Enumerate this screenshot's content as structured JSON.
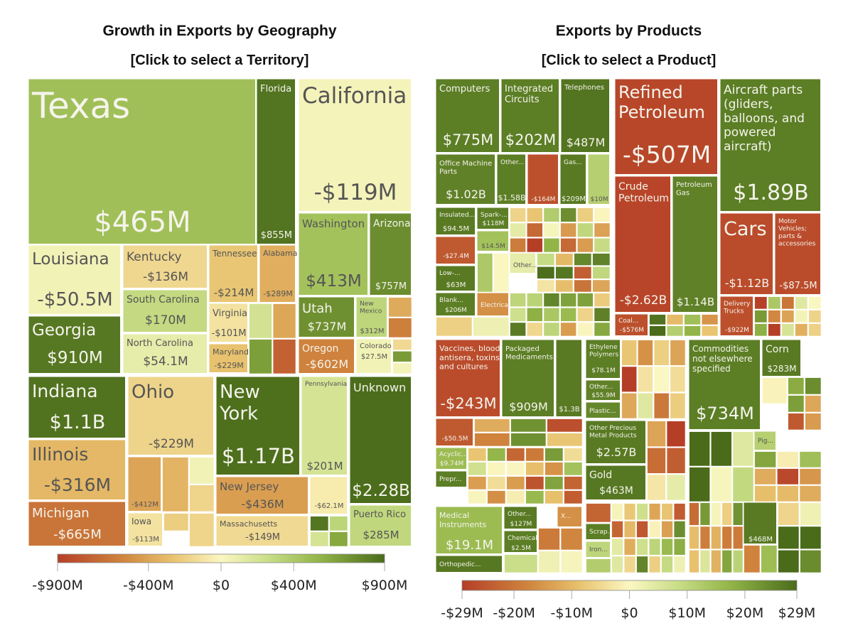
{
  "left": {
    "title": "Growth in Exports by Geography",
    "subtitle": "[Click to select a Territory]"
  },
  "right": {
    "title": "Exports by Products",
    "subtitle": "[Click to select a Product]"
  },
  "chart_data": [
    {
      "type": "treemap",
      "title": "Growth in Exports by Geography",
      "legend": {
        "min": "-$900M",
        "max": "$900M",
        "ticks": [
          "-$900M",
          "-$400M",
          "$0",
          "$400M",
          "$900M"
        ],
        "tick_values": [
          -900,
          -400,
          0,
          400,
          900
        ]
      },
      "colors": {
        "negative": "#b53e27",
        "zero": "#fbf7c2",
        "positive": "#4a6b1a"
      },
      "items": [
        {
          "name": "Texas",
          "value_label": "$465M",
          "value": 465
        },
        {
          "name": "Florida",
          "value_label": "$855M",
          "value": 855
        },
        {
          "name": "California",
          "value_label": "-$119M",
          "value": -119
        },
        {
          "name": "Louisiana",
          "value_label": "-$50.5M",
          "value": -50.5
        },
        {
          "name": "Kentucky",
          "value_label": "-$136M",
          "value": -136
        },
        {
          "name": "Tennessee",
          "value_label": "-$214M",
          "value": -214
        },
        {
          "name": "Alabama",
          "value_label": "-$289M",
          "value": -289
        },
        {
          "name": "South Carolina",
          "value_label": "$170M",
          "value": 170
        },
        {
          "name": "North Carolina",
          "value_label": "$54.1M",
          "value": 54.1
        },
        {
          "name": "Virginia",
          "value_label": "-$101M",
          "value": -101
        },
        {
          "name": "Maryland",
          "value_label": "-$229M",
          "value": -229
        },
        {
          "name": "Georgia",
          "value_label": "$910M",
          "value": 910
        },
        {
          "name": "Washington",
          "value_label": "$413M",
          "value": 413
        },
        {
          "name": "Arizona",
          "value_label": "$757M",
          "value": 757
        },
        {
          "name": "Utah",
          "value_label": "$737M",
          "value": 737
        },
        {
          "name": "New Mexico",
          "value_label": "$312M",
          "value": 312
        },
        {
          "name": "Oregon",
          "value_label": "-$602M",
          "value": -602
        },
        {
          "name": "Colorado",
          "value_label": "$27.5M",
          "value": 27.5
        },
        {
          "name": "Indiana",
          "value_label": "$1.1B",
          "value": 1100
        },
        {
          "name": "Illinois",
          "value_label": "-$316M",
          "value": -316
        },
        {
          "name": "Michigan",
          "value_label": "-$665M",
          "value": -665
        },
        {
          "name": "Ohio",
          "value_label": "-$229M",
          "value": -229
        },
        {
          "name": "",
          "value_label": "-$412M",
          "value": -412
        },
        {
          "name": "Iowa",
          "value_label": "-$113M",
          "value": -113
        },
        {
          "name": "New York",
          "value_label": "$1.17B",
          "value": 1170
        },
        {
          "name": "Pennsylvania",
          "value_label": "$201M",
          "value": 201
        },
        {
          "name": "New Jersey",
          "value_label": "-$436M",
          "value": -436
        },
        {
          "name": "",
          "value_label": "-$62.1M",
          "value": -62.1
        },
        {
          "name": "Massachusetts",
          "value_label": "-$149M",
          "value": -149
        },
        {
          "name": "Unknown",
          "value_label": "$2.28B",
          "value": 2280
        },
        {
          "name": "Puerto Rico",
          "value_label": "$285M",
          "value": 285
        }
      ]
    },
    {
      "type": "treemap",
      "title": "Exports by Products",
      "legend": {
        "min": "-$29M",
        "max": "$29M",
        "ticks": [
          "-$29M",
          "-$20M",
          "-$10M",
          "$0",
          "$10M",
          "$20M",
          "$29M"
        ],
        "tick_values": [
          -29,
          -20,
          -10,
          0,
          10,
          20,
          29
        ]
      },
      "colors": {
        "negative": "#a63022",
        "zero": "#fbf7c2",
        "positive": "#4a6b1a"
      },
      "items": [
        {
          "name": "Computers",
          "value_label": "$775M"
        },
        {
          "name": "Integrated Circuits",
          "value_label": "$202M"
        },
        {
          "name": "Telephones",
          "value_label": "$487M"
        },
        {
          "name": "Office Machine Parts",
          "value_label": "$1.02B"
        },
        {
          "name": "Other...",
          "value_label": "$1.58B"
        },
        {
          "name": "",
          "value_label": "-$164M"
        },
        {
          "name": "Gas...",
          "value_label": "$209M"
        },
        {
          "name": "",
          "value_label": "$10M"
        },
        {
          "name": "Insulated...",
          "value_label": "$94.5M"
        },
        {
          "name": "Spark-...",
          "value_label": "$118M"
        },
        {
          "name": "",
          "value_label": "$14.5M"
        },
        {
          "name": "",
          "value_label": "-$27.4M"
        },
        {
          "name": "Other...",
          "value_label": ""
        },
        {
          "name": "Low-...",
          "value_label": "$63M"
        },
        {
          "name": "Blank...",
          "value_label": "$206M"
        },
        {
          "name": "Electrical...",
          "value_label": ""
        },
        {
          "name": "Refined Petroleum",
          "value_label": "-$507M"
        },
        {
          "name": "Crude Petroleum",
          "value_label": "-$2.62B"
        },
        {
          "name": "Petroleum Gas",
          "value_label": "$1.14B"
        },
        {
          "name": "Coal...",
          "value_label": "-$576M"
        },
        {
          "name": "Aircraft parts (gliders, balloons, and powered aircraft)",
          "value_label": "$1.89B"
        },
        {
          "name": "Cars",
          "value_label": "-$1.12B"
        },
        {
          "name": "Motor Vehicles; parts & accessories",
          "value_label": "-$87.5M"
        },
        {
          "name": "Delivery Trucks",
          "value_label": "-$922M"
        },
        {
          "name": "Vaccines, blood, antisera, toxins and cultures",
          "value_label": "-$243M"
        },
        {
          "name": "Packaged Medicaments",
          "value_label": "$909M"
        },
        {
          "name": "",
          "value_label": "$1.3B"
        },
        {
          "name": "",
          "value_label": "-$50.5M"
        },
        {
          "name": "Acyclic...",
          "value_label": "$9.74M"
        },
        {
          "name": "Prepr...",
          "value_label": ""
        },
        {
          "name": "Ethylene Polymers",
          "value_label": "$78.1M"
        },
        {
          "name": "Other...",
          "value_label": "$55.9M"
        },
        {
          "name": "Plastic...",
          "value_label": ""
        },
        {
          "name": "Other Precious Metal Products",
          "value_label": "$2.57B"
        },
        {
          "name": "Gold",
          "value_label": "$463M"
        },
        {
          "name": "Commodities not elsewhere specified",
          "value_label": "$734M"
        },
        {
          "name": "Corn",
          "value_label": "$283M"
        },
        {
          "name": "Pig...",
          "value_label": ""
        },
        {
          "name": "",
          "value_label": "$468M"
        },
        {
          "name": "Medical Instruments",
          "value_label": "$19.1M"
        },
        {
          "name": "Orthopedic...",
          "value_label": ""
        },
        {
          "name": "Other...",
          "value_label": "$127M"
        },
        {
          "name": "Chemical...",
          "value_label": "$2.5M"
        },
        {
          "name": "X...",
          "value_label": ""
        },
        {
          "name": "Scrap...",
          "value_label": ""
        },
        {
          "name": "Iron...",
          "value_label": ""
        }
      ]
    }
  ]
}
